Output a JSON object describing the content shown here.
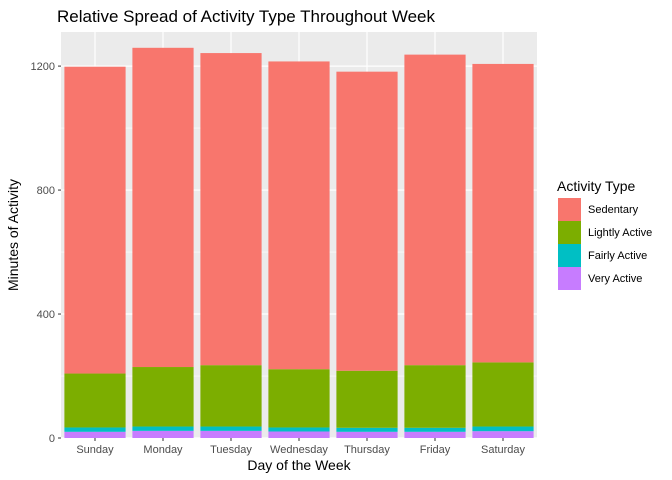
{
  "chart_data": {
    "type": "bar",
    "stacked": true,
    "title": "Relative Spread of Activity Type Throughout Week",
    "xlabel": "Day of the Week",
    "ylabel": "Minutes of Activity",
    "categories": [
      "Sunday",
      "Monday",
      "Tuesday",
      "Wednesday",
      "Thursday",
      "Friday",
      "Saturday"
    ],
    "ylim": [
      0,
      1310
    ],
    "yticks": [
      0,
      400,
      800,
      1200
    ],
    "grid": true,
    "legend": {
      "title": "Activity Type",
      "position": "right",
      "order": [
        "Sedentary",
        "Lightly Active",
        "Fairly Active",
        "Very Active"
      ]
    },
    "series": [
      {
        "name": "Very Active",
        "color": "#C77CFF",
        "values": [
          20,
          23,
          23,
          21,
          20,
          20,
          22
        ]
      },
      {
        "name": "Fairly Active",
        "color": "#00BFC4",
        "values": [
          14,
          14,
          14,
          13,
          13,
          13,
          15
        ]
      },
      {
        "name": "Lightly Active",
        "color": "#7CAE00",
        "values": [
          174,
          192,
          198,
          188,
          184,
          202,
          207
        ]
      },
      {
        "name": "Sedentary",
        "color": "#F8766D",
        "values": [
          990,
          1030,
          1007,
          993,
          965,
          1002,
          963
        ]
      }
    ]
  }
}
